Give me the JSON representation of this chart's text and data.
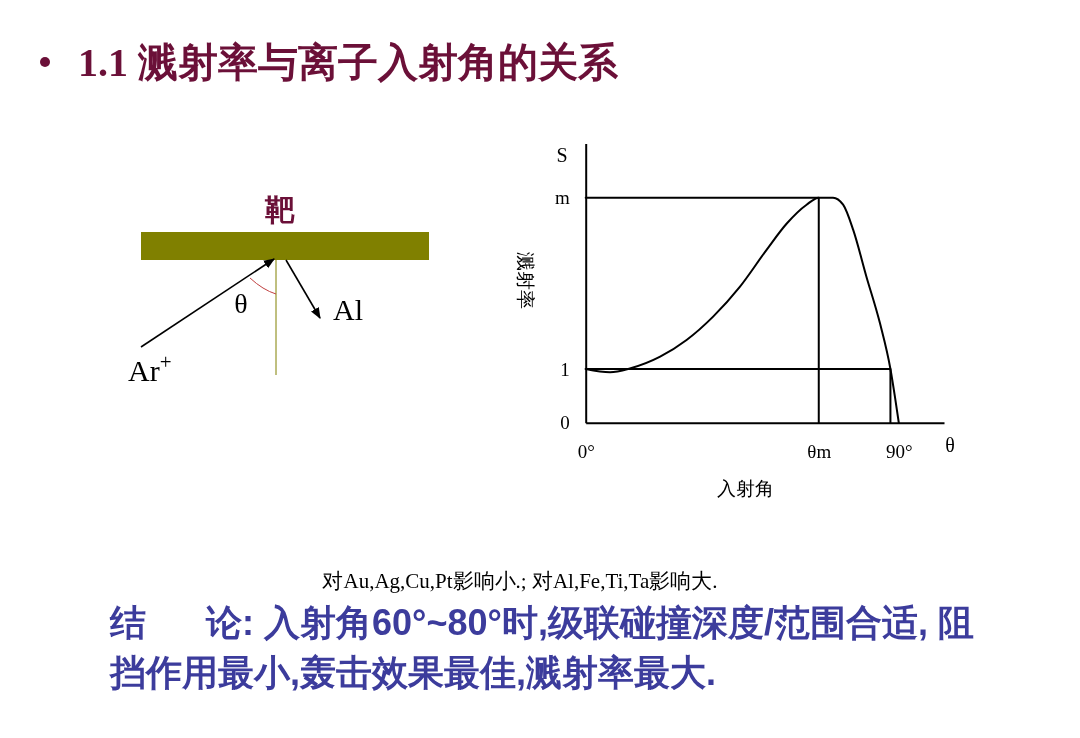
{
  "chart_data": {
    "type": "line",
    "title": "1.1 溅射率与离子入射角的关系",
    "xlabel": "入射角",
    "ylabel": "溅射率",
    "annotations": [
      "S",
      "θ",
      "靶",
      "θ",
      "Al",
      "Ar$^{+}$",
      "对Au,Ag,Cu,Pt影响小.; 对Al,Fe,Ti,Ta影响大.",
      "结      论: 入射角60°~80°时,级联碰撞深度/范围合适, 阻挡作用最小,轰击效果最佳,溅射率最大."
    ],
    "xlim": [
      0,
      103
    ],
    "ylim": [
      0,
      5.2
    ],
    "xticks": [
      {
        "value": 0,
        "label": "0°"
      },
      {
        "value": 67,
        "label": "θm"
      },
      {
        "value": 90,
        "label": "90°"
      }
    ],
    "yticks": [
      0,
      1,
      {
        "value": 4.19,
        "label": "m"
      }
    ],
    "series": [
      {
        "color": "#000000",
        "x": [
          0,
          7,
          12.7,
          21.4,
          29,
          36.7,
          44.3,
          52,
          57.8,
          63.5,
          67,
          71.1,
          74,
          76.9,
          80.7,
          84.6,
          87.6,
          88.9,
          90
        ],
        "values": [
          1,
          0.94,
          1.01,
          1.23,
          1.54,
          1.98,
          2.53,
          3.22,
          3.71,
          4.06,
          4.19,
          4.19,
          4.06,
          3.59,
          2.72,
          1.85,
          1,
          0.48,
          0
        ]
      },
      {
        "type": "line",
        "color": "#000000",
        "x": [
          0,
          67,
          67
        ],
        "values": [
          4.19,
          4.19,
          0
        ]
      },
      {
        "type": "line",
        "color": "#000000",
        "x": [
          0,
          87.6,
          87.6
        ],
        "values": [
          1,
          1,
          0
        ]
      }
    ]
  }
}
